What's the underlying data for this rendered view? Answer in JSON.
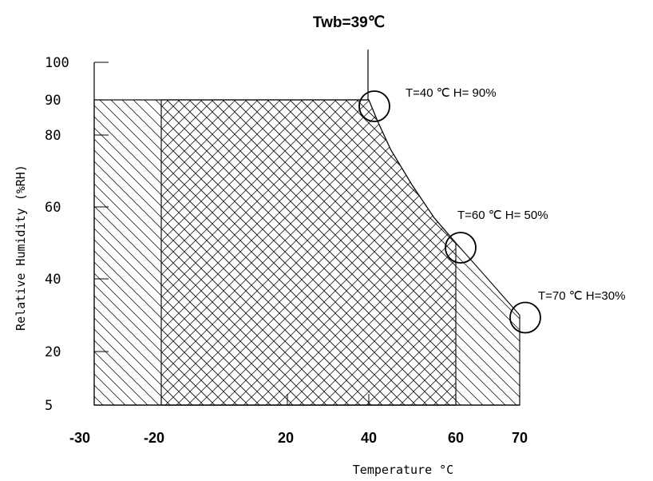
{
  "chart_data": {
    "type": "area",
    "title": "Twb=39℃",
    "xlabel": "Temperature °C",
    "ylabel": "Relative Humidity (%RH)",
    "x_ticks": [
      "-30",
      "-20",
      "20",
      "40",
      "60",
      "70"
    ],
    "y_ticks": [
      "5",
      "20",
      "40",
      "60",
      "80",
      "90",
      "100"
    ],
    "x_tick_values": [
      -30,
      -20,
      20,
      40,
      60,
      70
    ],
    "y_tick_values": [
      5,
      20,
      40,
      60,
      80,
      90,
      100
    ],
    "grid": false,
    "series": [
      {
        "x": [
          -30,
          40,
          42,
          45,
          50,
          55,
          60,
          65,
          70,
          70,
          -30
        ],
        "y": [
          90,
          90,
          84,
          76,
          66,
          57,
          50,
          40,
          30,
          5,
          5
        ]
      },
      {
        "x": [
          -20,
          40,
          42,
          45,
          50,
          55,
          60,
          60,
          -20
        ],
        "y": [
          90,
          90,
          84,
          76,
          66,
          57,
          50,
          5,
          5
        ]
      }
    ],
    "annotations": [
      {
        "x": 40,
        "y": 90,
        "text": "T=40 ℃ H= 90%"
      },
      {
        "x": 60,
        "y": 50,
        "text": "T=60 ℃ H= 50%"
      },
      {
        "x": 70,
        "y": 30,
        "text": "T=70 ℃ H=30%"
      }
    ]
  }
}
